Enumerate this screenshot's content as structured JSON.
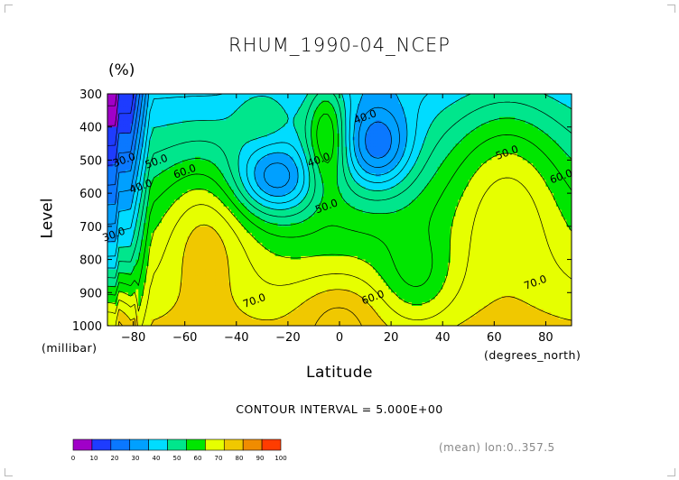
{
  "title": "RHUM_1990-04_NCEP",
  "units": "(%)",
  "ylabel": "Level",
  "yunits": "(millibar)",
  "xlabel": "Latitude",
  "xunits": "(degrees_north)",
  "contour_interval": "CONTOUR INTERVAL = 5.000E+00",
  "mean_label": "(mean) lon:0..357.5",
  "chart_data": {
    "type": "heatmap",
    "title": "RHUM_1990-04_NCEP",
    "xlabel": "Latitude",
    "ylabel": "Level",
    "x_units": "(degrees_north)",
    "y_units": "(millibar)",
    "xlim": [
      -90,
      90
    ],
    "ylim": [
      1000,
      300
    ],
    "xticks": [
      -80,
      -60,
      -40,
      -20,
      0,
      20,
      40,
      60,
      80
    ],
    "yticks": [
      300,
      400,
      500,
      600,
      700,
      800,
      900,
      1000
    ],
    "contour_interval": 5,
    "colorbar": {
      "labels": [
        "0",
        "10",
        "20",
        "30",
        "40",
        "50",
        "60",
        "70",
        "80",
        "90",
        "100"
      ],
      "colors": [
        "#a000c8",
        "#1e3cff",
        "#0a78ff",
        "#00a0ff",
        "#00dcff",
        "#00e68c",
        "#00e600",
        "#e6ff00",
        "#f0c800",
        "#f08c00",
        "#ff3c00"
      ]
    },
    "contour_labels": [
      {
        "text": "30.0",
        "lat": -83.5,
        "level": 500
      },
      {
        "text": "40.0",
        "lat": -77,
        "level": 580
      },
      {
        "text": "50.0",
        "lat": -71,
        "level": 505
      },
      {
        "text": "60.0",
        "lat": -60,
        "level": 535
      },
      {
        "text": "30.0",
        "lat": -87.5,
        "level": 725
      },
      {
        "text": "40.0",
        "lat": 10,
        "level": 370
      },
      {
        "text": "40.0",
        "lat": -8,
        "level": 500
      },
      {
        "text": "50.0",
        "lat": -5,
        "level": 640
      },
      {
        "text": "50.0",
        "lat": 65,
        "level": 478
      },
      {
        "text": "60.0",
        "lat": 86,
        "level": 550
      },
      {
        "text": "70.0",
        "lat": -33,
        "level": 925
      },
      {
        "text": "60.0",
        "lat": 13,
        "level": 915
      },
      {
        "text": "70.0",
        "lat": 76,
        "level": 870
      }
    ]
  }
}
